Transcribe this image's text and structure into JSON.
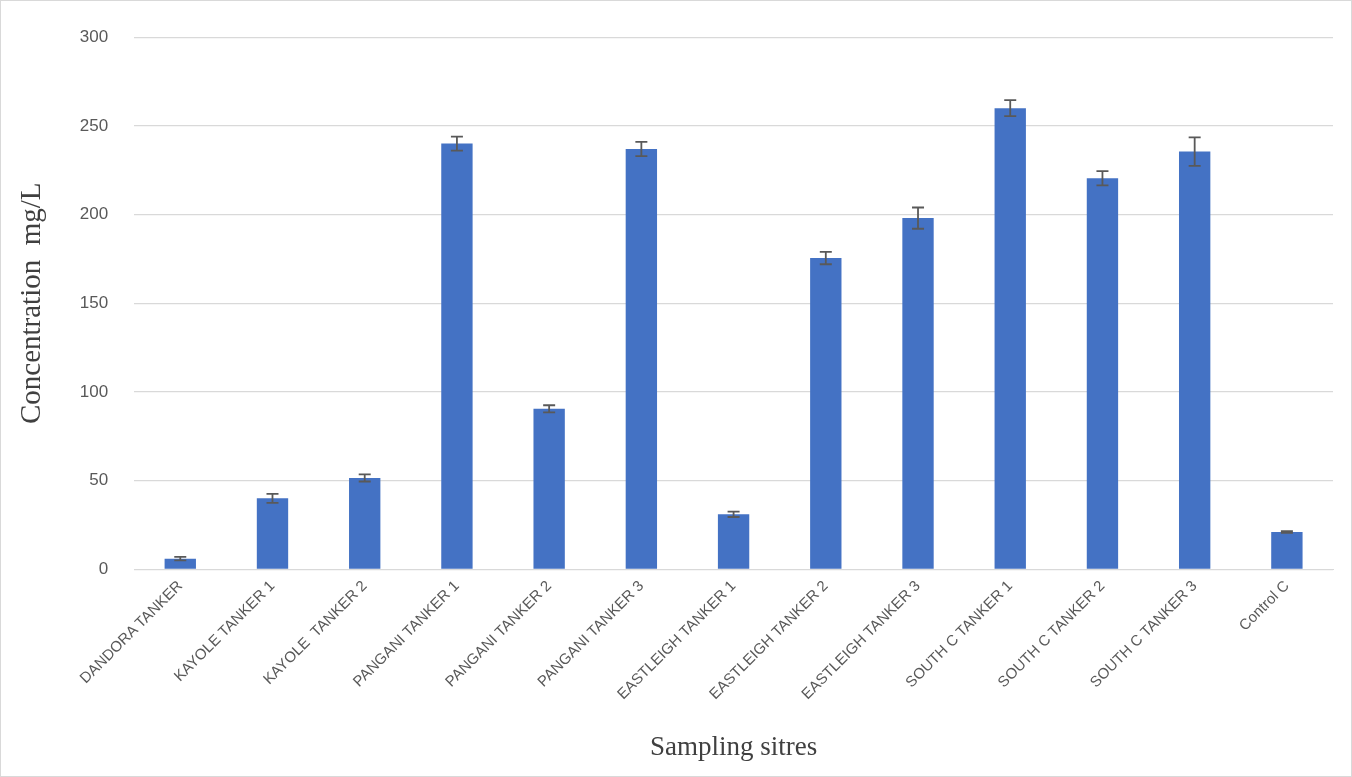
{
  "chart_data": {
    "type": "bar",
    "xlabel": "Sampling sitres",
    "ylabel": "Concentration  mg/L",
    "categories": [
      "DANDORA TANKER",
      "KAYOLE TANKER 1",
      "KAYOLE  TANKER 2",
      "PANGANI TANKER 1",
      "PANGANI TANKER 2",
      "PANGANI TANKER 3",
      "EASTLEIGH TANKER 1",
      "EASTLEIGH TANKER 2",
      "EASTLEIGH TANKER 3",
      "SOUTH C TANKER 1",
      "SOUTH C TANKER 2",
      "SOUTH C TANKER 3",
      "Control C"
    ],
    "values": [
      6,
      40,
      51.5,
      240,
      90.5,
      237,
      31,
      175.5,
      198,
      260,
      220.5,
      235.5,
      21
    ],
    "errors": [
      1,
      2.5,
      2,
      4,
      2,
      4,
      1.5,
      3.5,
      6,
      4.5,
      4,
      8,
      0.5
    ],
    "color": "#4472c4",
    "ylim": [
      0,
      300
    ],
    "yticks": [
      0,
      50,
      100,
      150,
      200,
      250,
      300
    ],
    "grid": "y",
    "legend": false
  }
}
